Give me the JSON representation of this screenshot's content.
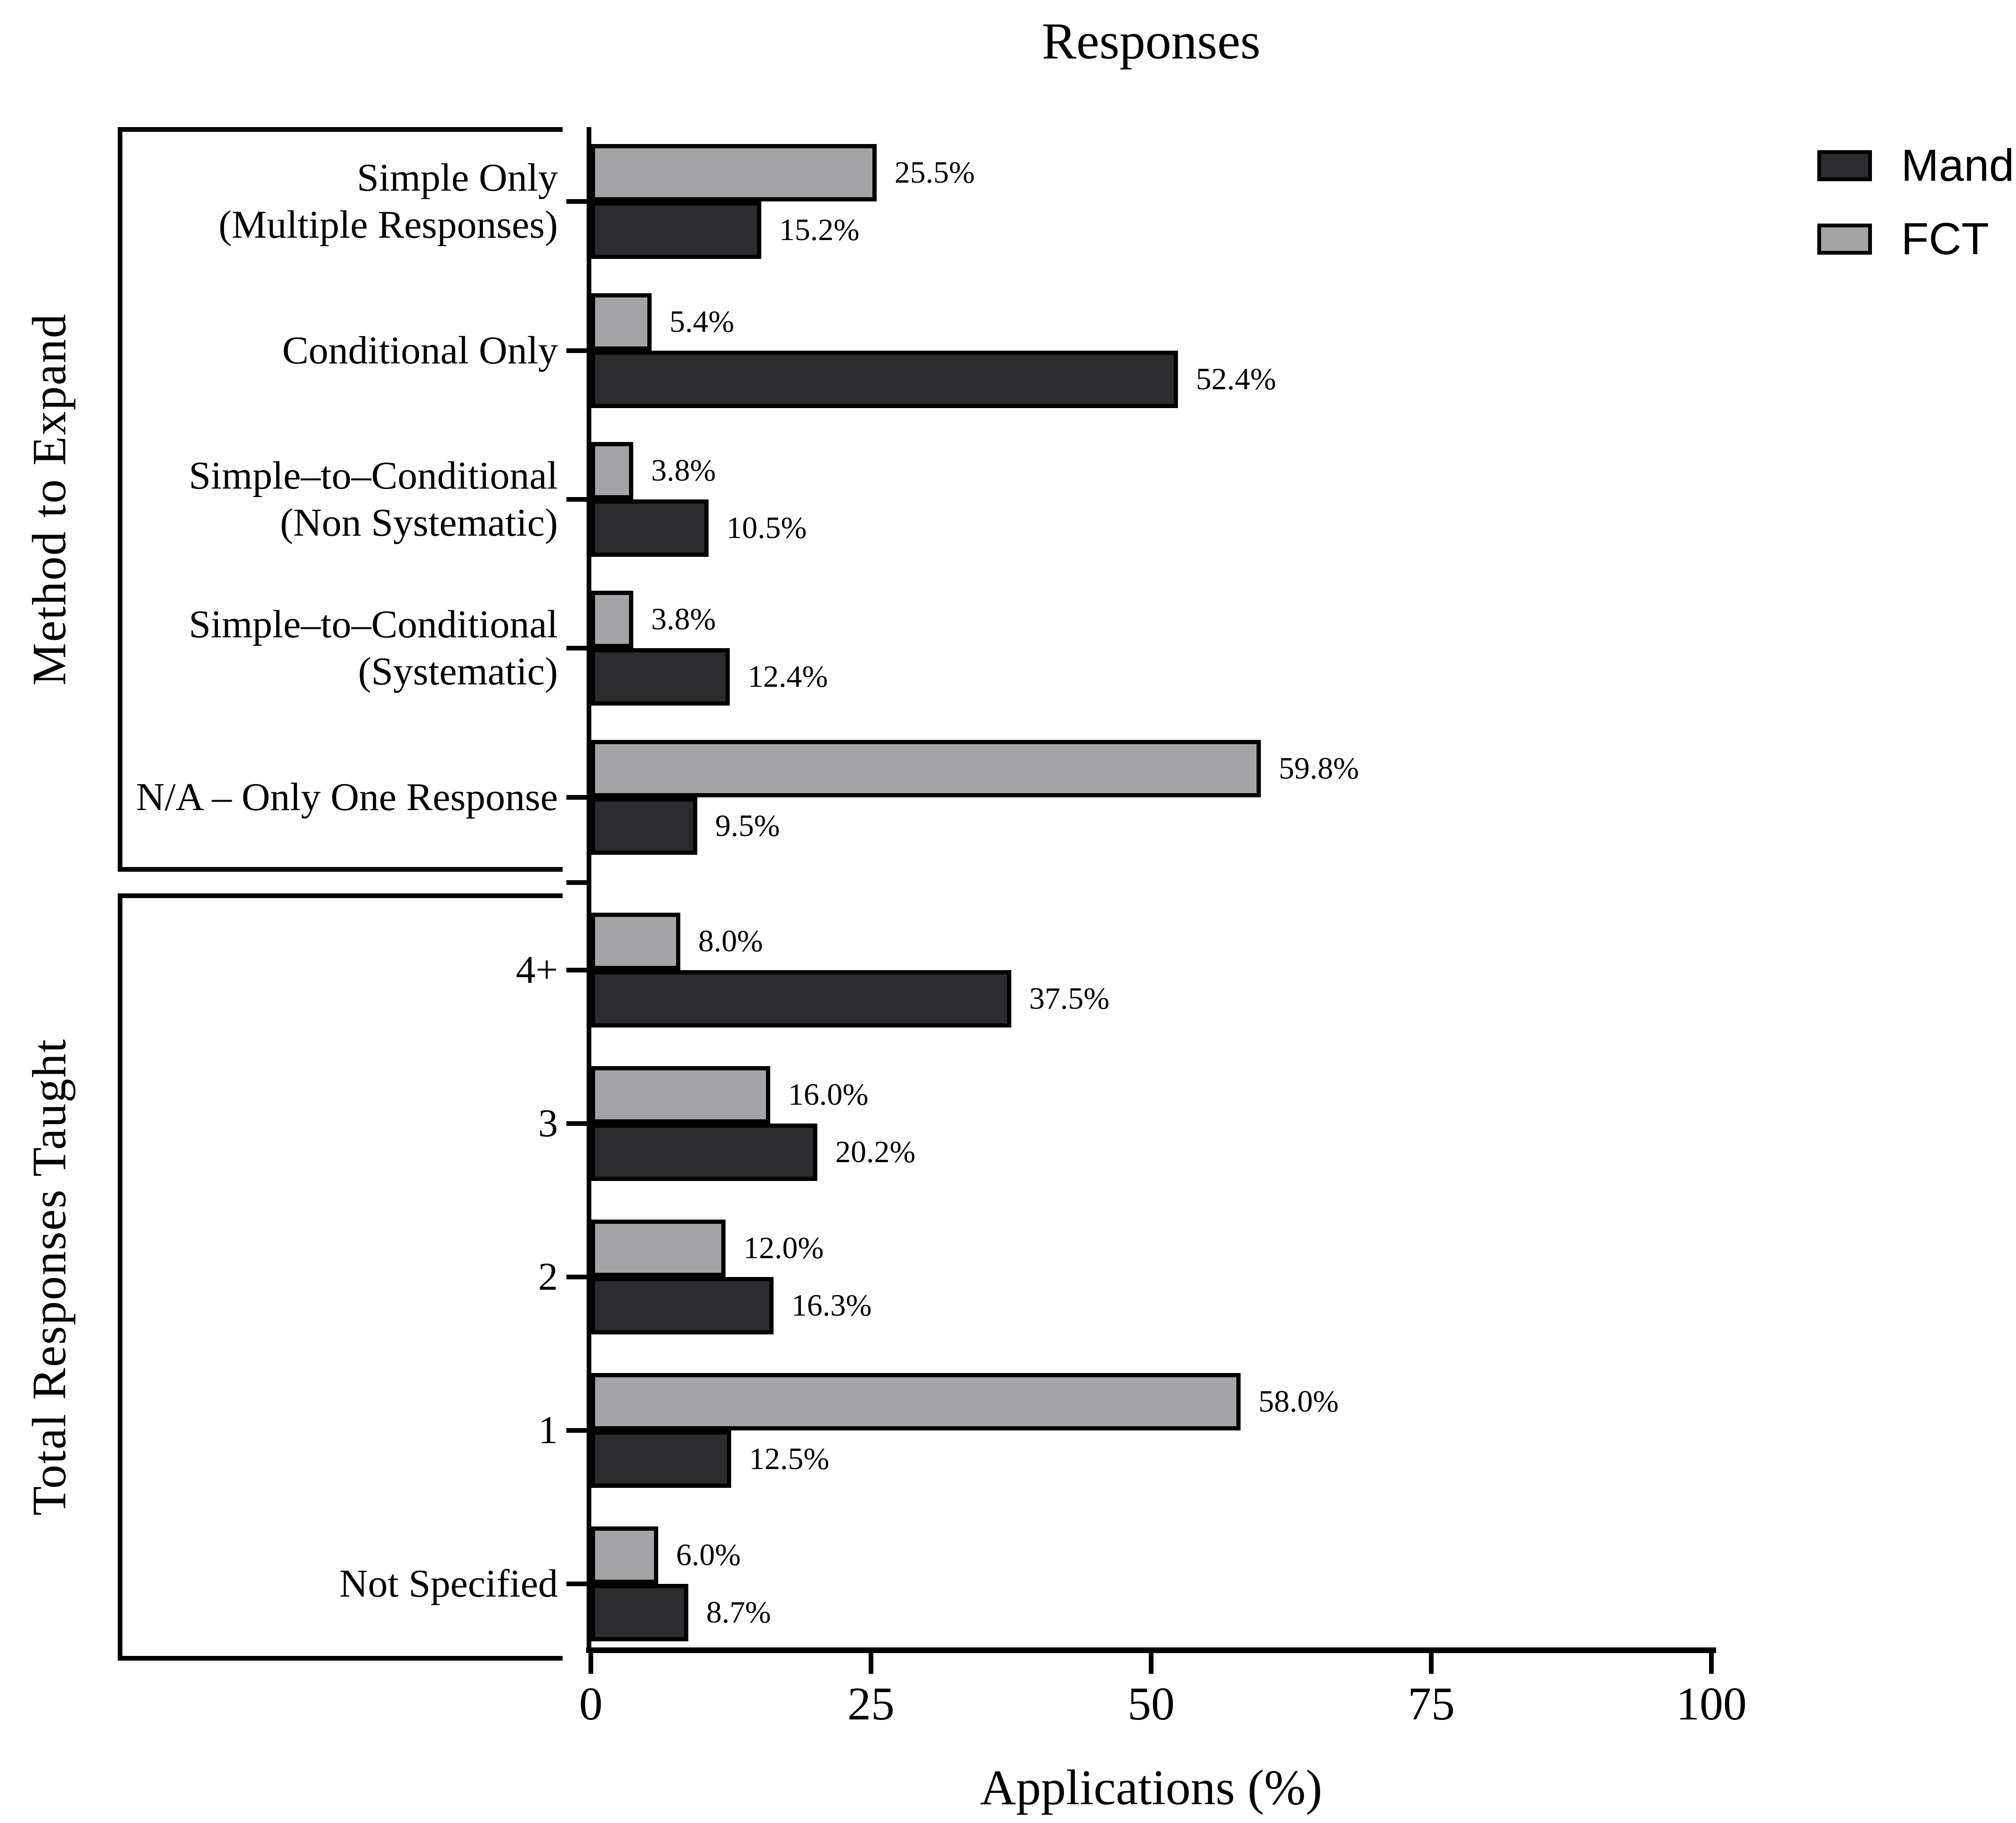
{
  "chart_data": {
    "type": "bar",
    "orientation": "horizontal",
    "title": "Responses",
    "xlabel": "Applications (%)",
    "xlim": [
      0,
      100
    ],
    "x_ticks": [
      0,
      25,
      50,
      75,
      100
    ],
    "grid": false,
    "legend_position": "top-right",
    "value_label_format": "{value}%",
    "series": [
      {
        "name": "Mand",
        "color": "#2c2c2e"
      },
      {
        "name": "FCT",
        "color": "#a4a4a7"
      }
    ],
    "groups": [
      {
        "label": "Method to Expand",
        "rows": [
          {
            "category": "Simple Only (Multiple Responses)",
            "lines": [
              "Simple Only",
              "(Multiple Responses)"
            ],
            "FCT": 25.5,
            "Mand": 15.2
          },
          {
            "category": "Conditional Only",
            "lines": [
              "Conditional Only"
            ],
            "FCT": 5.4,
            "Mand": 52.4
          },
          {
            "category": "Simple–to–Conditional (Non Systematic)",
            "lines": [
              "Simple–to–Conditional",
              "(Non Systematic)"
            ],
            "FCT": 3.8,
            "Mand": 10.5
          },
          {
            "category": "Simple–to–Conditional (Systematic)",
            "lines": [
              "Simple–to–Conditional",
              "(Systematic)"
            ],
            "FCT": 3.8,
            "Mand": 12.4
          },
          {
            "category": "N/A – Only One Response",
            "lines": [
              "N/A – Only One Response"
            ],
            "FCT": 59.8,
            "Mand": 9.5
          }
        ]
      },
      {
        "label": "Total Responses Taught",
        "rows": [
          {
            "category": "4+",
            "lines": [
              "4+"
            ],
            "FCT": 8.0,
            "Mand": 37.5
          },
          {
            "category": "3",
            "lines": [
              "3"
            ],
            "FCT": 16.0,
            "Mand": 20.2
          },
          {
            "category": "2",
            "lines": [
              "2"
            ],
            "FCT": 12.0,
            "Mand": 16.3
          },
          {
            "category": "1",
            "lines": [
              "1"
            ],
            "FCT": 58.0,
            "Mand": 12.5
          },
          {
            "category": "Not Specified",
            "lines": [
              "Not Specified"
            ],
            "FCT": 6.0,
            "Mand": 8.7
          }
        ]
      }
    ]
  }
}
